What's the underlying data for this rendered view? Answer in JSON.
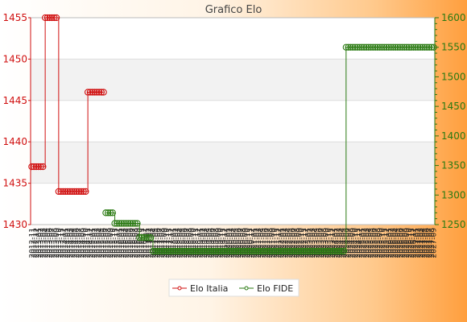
{
  "chart_data": {
    "type": "line",
    "title": "Grafico Elo",
    "colors": {
      "italia": "#d01010",
      "fide": "#2a7a12",
      "plot_band": "#f2f2f2",
      "grid": "#dddddd"
    },
    "y_left": {
      "min": 1430,
      "max": 1455,
      "ticks": [
        "1430",
        "1435",
        "1440",
        "1445",
        "1450",
        "1455"
      ]
    },
    "y_right": {
      "min": 1250,
      "max": 1600,
      "ticks": [
        "1250",
        "1300",
        "1350",
        "1400",
        "1450",
        "1500",
        "1550",
        "1600"
      ]
    },
    "legend_position": "bottom-center",
    "x_count": 180,
    "series": [
      {
        "name": "Elo Italia",
        "axis": "left",
        "segments": [
          {
            "from": 0,
            "to": 5,
            "value": 1437
          },
          {
            "from": 6,
            "to": 11,
            "value": 1455
          },
          {
            "from": 12,
            "to": 24,
            "value": 1434
          },
          {
            "from": 25,
            "to": 32,
            "value": 1446
          }
        ]
      },
      {
        "name": "Elo FIDE",
        "axis": "right",
        "segments": [
          {
            "from": 33,
            "to": 36,
            "value": 1270
          },
          {
            "from": 37,
            "to": 47,
            "value": 1252
          },
          {
            "from": 48,
            "to": 53,
            "value": 1228
          },
          {
            "from": 54,
            "to": 139,
            "value": 1205
          },
          {
            "from": 140,
            "to": 179,
            "value": 1550
          }
        ]
      }
    ],
    "x_labels": [
      "2012-11",
      "2012-11",
      "2012-12",
      "2013-01",
      "2013-02",
      "2013-03",
      "2013-04",
      "2013-05",
      "2013-06",
      "2013-07",
      "2013-08",
      "2013-09",
      "2013-10",
      "2013-11",
      "2013-12",
      "2014-01",
      "2014-02",
      "2014-03",
      "2014-04",
      "2014-05",
      "2014-06",
      "2014-07",
      "2014-08",
      "2014-09",
      "2014-10",
      "2014-11",
      "2014-12",
      "2015-01",
      "2015-02",
      "2015-03",
      "2015-04",
      "2015-05",
      "2015-06",
      "2015-07",
      "2015-08",
      "2015-09",
      "2015-10",
      "2015-11",
      "2015-12",
      "2016-01",
      "2016-02",
      "2016-03",
      "2016-04",
      "2016-05",
      "2016-06",
      "2016-07",
      "2016-08",
      "2016-09",
      "2016-10",
      "2016-11",
      "2016-12",
      "2017-01",
      "2017-02",
      "2017-03",
      "2017-04",
      "2017-05",
      "2017-06",
      "2017-07",
      "2017-08",
      "2017-09",
      "2017-10",
      "2017-11",
      "2017-12",
      "2018-01",
      "2018-02",
      "2018-03",
      "2018-04",
      "2018-05",
      "2018-06",
      "2018-07",
      "2018-08",
      "2018-09",
      "2018-10",
      "2018-11",
      "2018-12",
      "2019-01",
      "2019-02",
      "2019-03",
      "2019-04",
      "2019-05",
      "2019-06",
      "2019-07",
      "2019-08",
      "2019-09",
      "2019-10",
      "2019-11",
      "2019-12",
      "2020-01",
      "2020-02",
      "2020-03",
      "2020-04",
      "2020-05",
      "2020-06",
      "2020-07",
      "2020-08",
      "2020-09",
      "2020-10",
      "2020-11",
      "2020-12",
      "2021-01",
      "2021-02",
      "2021-03",
      "2021-04",
      "2021-05",
      "2021-06",
      "2021-07",
      "2021-08",
      "2021-09",
      "2021-10",
      "2021-11",
      "2021-12",
      "2022-01",
      "2022-02",
      "2022-03",
      "2022-04",
      "2022-05",
      "2022-06",
      "2022-07",
      "2022-08",
      "2022-09",
      "2022-10",
      "2022-11",
      "2022-12",
      "2023-01",
      "2023-02",
      "2023-03",
      "2023-04",
      "2023-05",
      "2023-06",
      "2023-07",
      "2023-08",
      "2023-09",
      "2023-10",
      "2023-11",
      "2023-12",
      "2024-01",
      "2024-02",
      "2024-03",
      "2024-04",
      "2024-05",
      "2024-06",
      "2024-07",
      "2024-08",
      "2024-09",
      "2024-10",
      "2024-11",
      "2024-12",
      "2025-01",
      "2025-02",
      "2025-03",
      "2025-04",
      "2025-05",
      "2025-06",
      "2025-07",
      "2025-08",
      "2025-09",
      "2025-10",
      "2025-11",
      "2025-12",
      "2026-01",
      "2026-02",
      "2026-03",
      "2026-04",
      "2026-05",
      "2026-06",
      "2026-07",
      "2026-08",
      "2026-09",
      "2026-10",
      "2026-11",
      "2026-12",
      "2027-01",
      "2027-02",
      "2027-03",
      "2027-04",
      "2027-05",
      "2027-06",
      "2027-07",
      "2027-08",
      "2027-09"
    ]
  }
}
